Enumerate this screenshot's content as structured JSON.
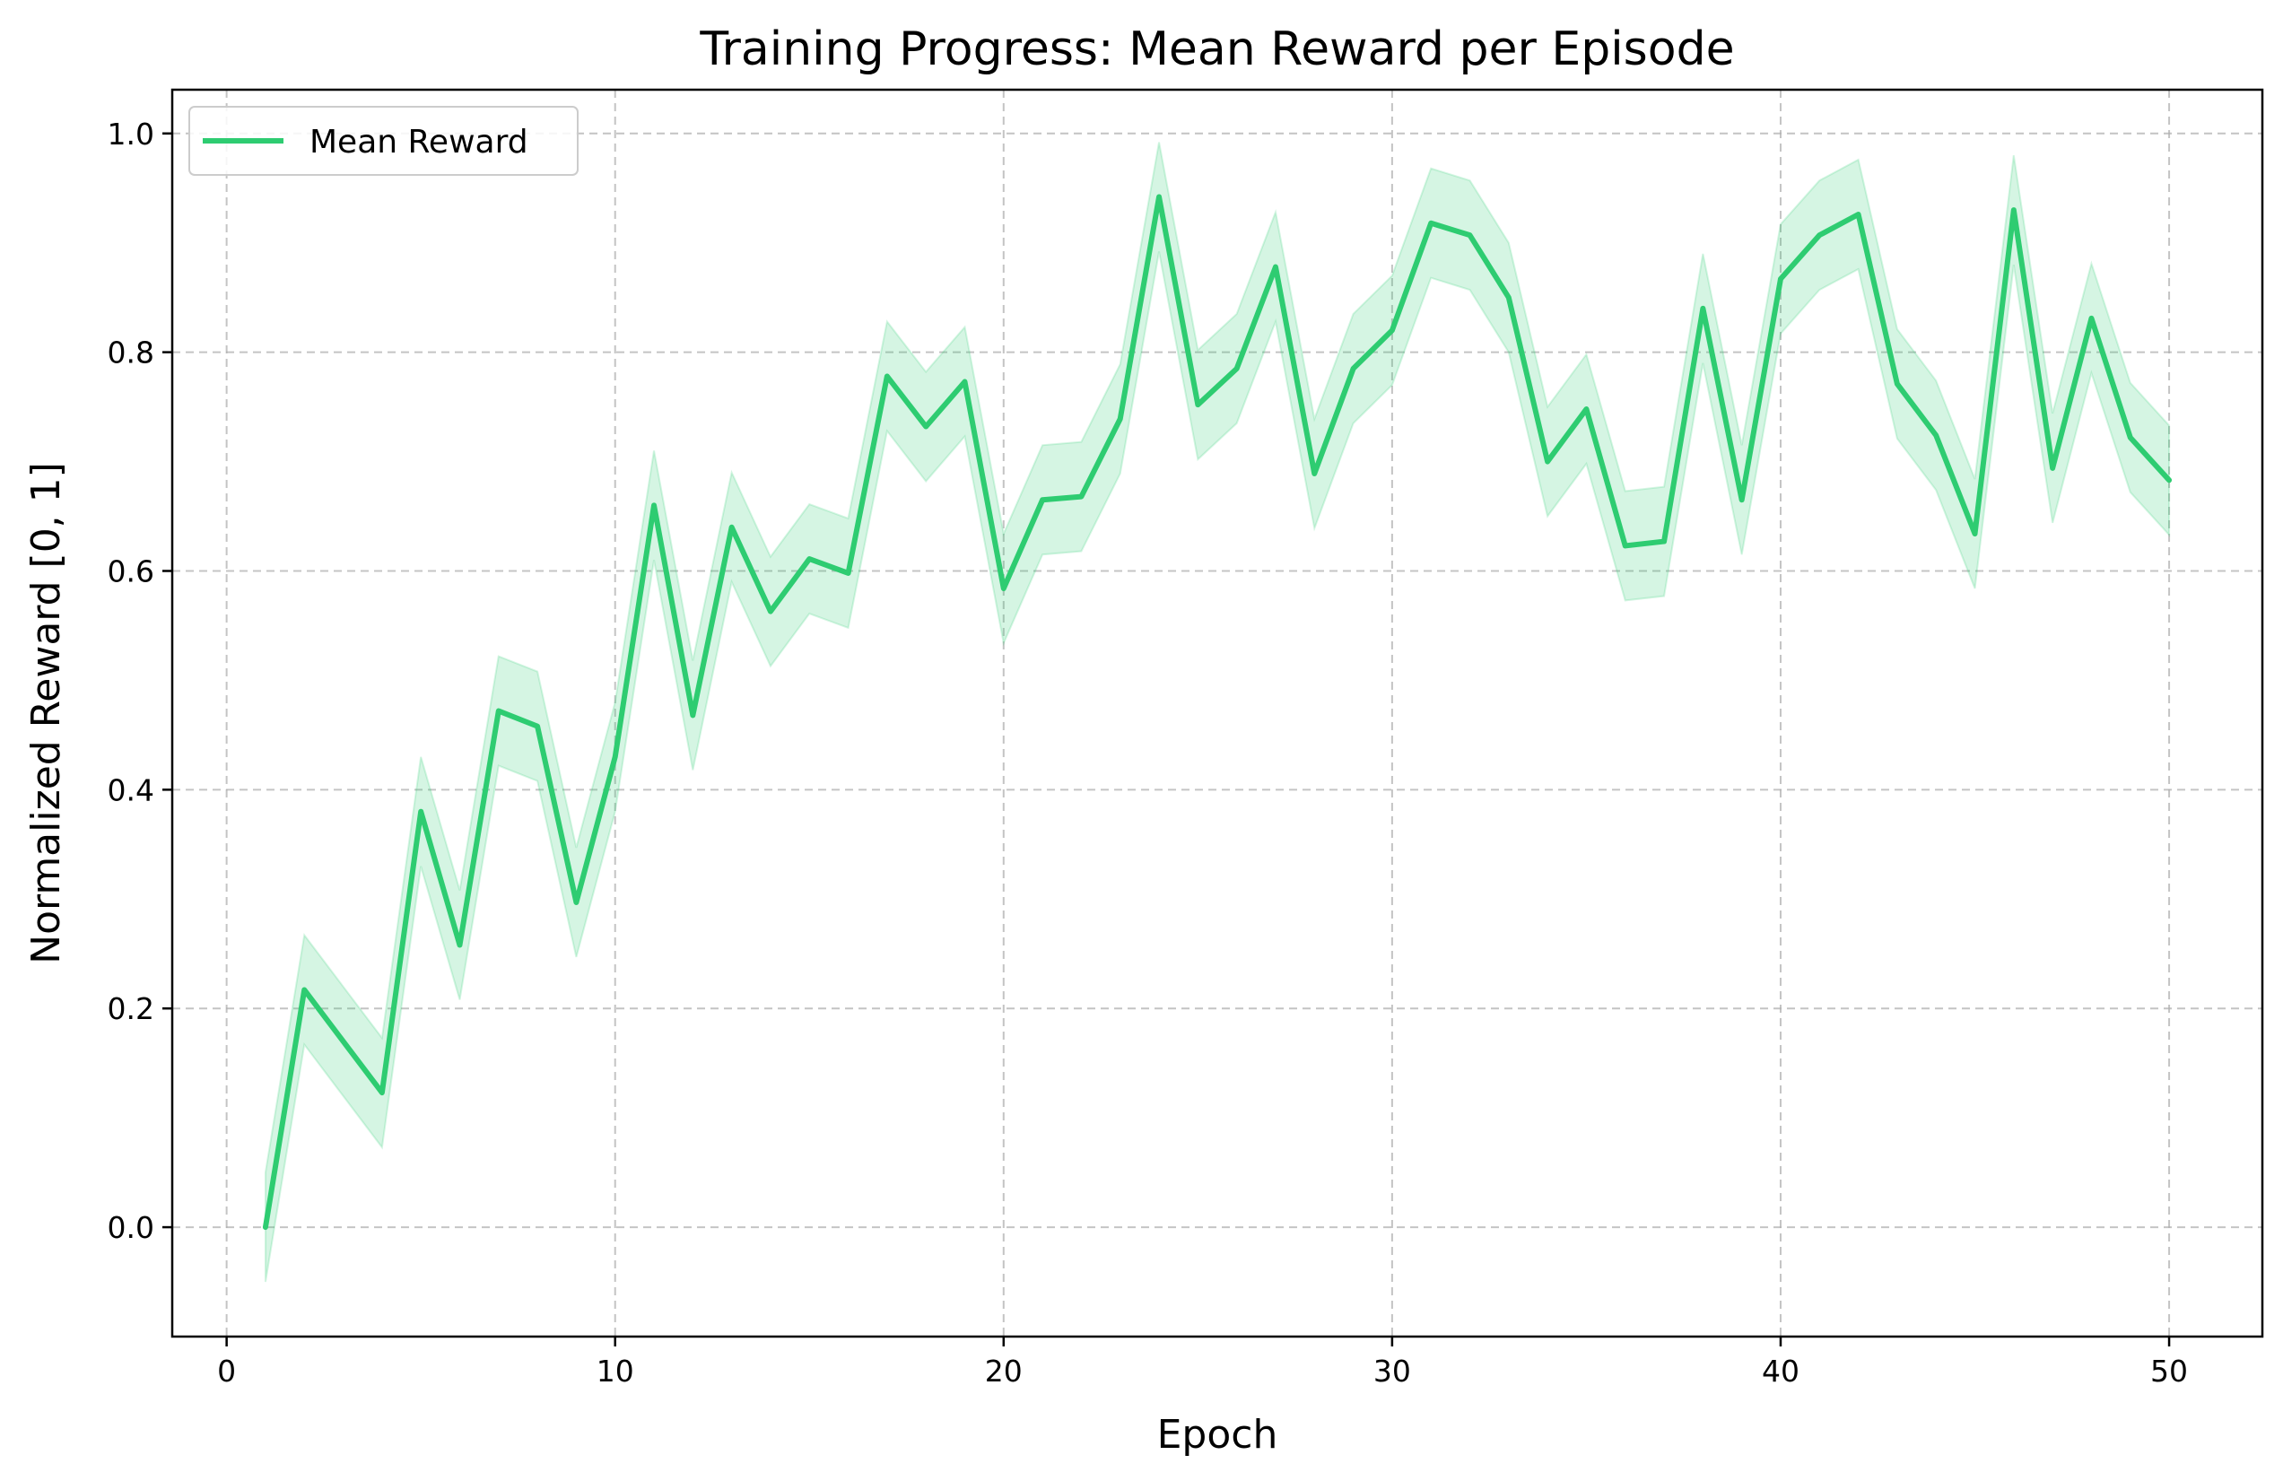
{
  "chart_data": {
    "type": "line",
    "title": "Training Progress: Mean Reward per Episode",
    "xlabel": "Epoch",
    "ylabel": "Normalized Reward [0, 1]",
    "xlim": [
      -1.4,
      52.4
    ],
    "ylim": [
      -0.1,
      1.04
    ],
    "x_ticks": [
      0,
      10,
      20,
      30,
      40,
      50
    ],
    "y_ticks": [
      0.0,
      0.2,
      0.4,
      0.6,
      0.8,
      1.0
    ],
    "x_tick_labels": [
      "0",
      "10",
      "20",
      "30",
      "40",
      "50"
    ],
    "y_tick_labels": [
      "0.0",
      "0.2",
      "0.4",
      "0.6",
      "0.8",
      "1.0"
    ],
    "grid": true,
    "legend": {
      "placement": "top-left",
      "entries": [
        "Mean Reward"
      ]
    },
    "colors": {
      "line": "#2ecc71",
      "band": "#2ecc71",
      "grid": "#b0b0b0",
      "axes": "#000000"
    },
    "series": [
      {
        "name": "Mean Reward",
        "x": [
          1,
          2,
          3,
          4,
          5,
          6,
          7,
          8,
          9,
          10,
          11,
          12,
          13,
          14,
          15,
          16,
          17,
          18,
          19,
          20,
          21,
          22,
          23,
          24,
          25,
          26,
          27,
          28,
          29,
          30,
          31,
          32,
          33,
          34,
          35,
          36,
          37,
          38,
          39,
          40,
          41,
          42,
          43,
          44,
          45,
          46,
          47,
          48,
          49,
          50
        ],
        "values": [
          0.0,
          0.217,
          0.17,
          0.123,
          0.38,
          0.258,
          0.472,
          0.458,
          0.297,
          0.43,
          0.66,
          0.468,
          0.64,
          0.563,
          0.611,
          0.598,
          0.778,
          0.732,
          0.773,
          0.584,
          0.665,
          0.668,
          0.739,
          0.942,
          0.752,
          0.785,
          0.878,
          0.689,
          0.785,
          0.82,
          0.918,
          0.907,
          0.85,
          0.7,
          0.748,
          0.623,
          0.627,
          0.84,
          0.665,
          0.867,
          0.907,
          0.926,
          0.771,
          0.724,
          0.634,
          0.93,
          0.694,
          0.831,
          0.722,
          0.683
        ],
        "band_halfwidth": 0.05
      }
    ]
  }
}
